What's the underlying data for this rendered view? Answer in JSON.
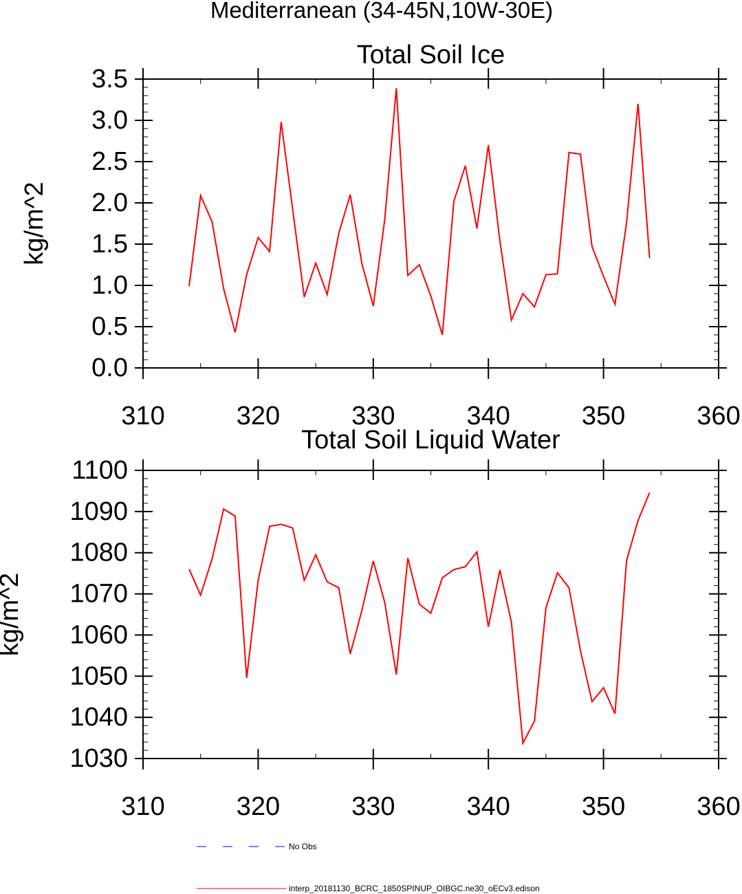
{
  "figure_title": "Mediterranean (34-45N,10W-30E)",
  "legend": [
    {
      "label": "No Obs",
      "color": "#0000ff",
      "style": "dashed"
    },
    {
      "label": "interp_20181130_BCRC_1850SPINUP_OIBGC.ne30_oECv3.edison",
      "color": "#ff0000",
      "style": "solid"
    }
  ],
  "chart_data": [
    {
      "type": "line",
      "title": "Total Soil Ice",
      "xlabel": "",
      "ylabel": "kg/m^2",
      "xlim": [
        310,
        360
      ],
      "ylim": [
        0.0,
        3.5
      ],
      "xticks": [
        310,
        320,
        330,
        340,
        350,
        360
      ],
      "xtick_labels": [
        "310",
        "320",
        "330",
        "340",
        "350",
        "360"
      ],
      "yticks": [
        0.0,
        0.5,
        1.0,
        1.5,
        2.0,
        2.5,
        3.0,
        3.5
      ],
      "ytick_labels": [
        "0.0",
        "0.5",
        "1.0",
        "1.5",
        "2.0",
        "2.5",
        "3.0",
        "3.5"
      ],
      "yminor_step": 0.1,
      "xminor_step": 5,
      "series": [
        {
          "name": "interp_20181130_BCRC_1850SPINUP_OIBGC.ne30_oECv3.edison",
          "color": "#ff0000",
          "x": [
            314,
            315,
            316,
            317,
            318,
            319,
            320,
            321,
            322,
            323,
            324,
            325,
            326,
            327,
            328,
            329,
            330,
            331,
            332,
            333,
            334,
            335,
            336,
            337,
            338,
            339,
            340,
            341,
            342,
            343,
            344,
            345,
            346,
            347,
            348,
            349,
            350,
            351,
            352,
            353,
            354
          ],
          "values": [
            0.99,
            2.09,
            1.77,
            0.96,
            0.43,
            1.13,
            1.58,
            1.41,
            2.98,
            1.92,
            0.86,
            1.27,
            0.89,
            1.63,
            2.1,
            1.27,
            0.75,
            1.8,
            3.39,
            1.12,
            1.25,
            0.87,
            0.4,
            2.02,
            2.45,
            1.69,
            2.7,
            1.54,
            0.58,
            0.9,
            0.74,
            1.13,
            1.14,
            2.61,
            2.59,
            1.47,
            1.11,
            0.77,
            1.76,
            3.2,
            1.33
          ]
        }
      ]
    },
    {
      "type": "line",
      "title": "Total Soil Liquid Water",
      "xlabel": "",
      "ylabel": "kg/m^2",
      "xlim": [
        310,
        360
      ],
      "ylim": [
        1030,
        1100
      ],
      "xticks": [
        310,
        320,
        330,
        340,
        350,
        360
      ],
      "xtick_labels": [
        "310",
        "320",
        "330",
        "340",
        "350",
        "360"
      ],
      "yticks": [
        1030,
        1040,
        1050,
        1060,
        1070,
        1080,
        1090,
        1100
      ],
      "ytick_labels": [
        "1030",
        "1040",
        "1050",
        "1060",
        "1070",
        "1080",
        "1090",
        "1100"
      ],
      "yminor_step": 2,
      "xminor_step": 5,
      "series": [
        {
          "name": "interp_20181130_BCRC_1850SPINUP_OIBGC.ne30_oECv3.edison",
          "color": "#ff0000",
          "x": [
            314,
            315,
            316,
            317,
            318,
            319,
            320,
            321,
            322,
            323,
            324,
            325,
            326,
            327,
            328,
            329,
            330,
            331,
            332,
            333,
            334,
            335,
            336,
            337,
            338,
            339,
            340,
            341,
            342,
            343,
            344,
            345,
            346,
            347,
            348,
            349,
            350,
            351,
            352,
            353,
            354
          ],
          "values": [
            1076.0,
            1069.7,
            1078.5,
            1090.6,
            1088.9,
            1049.6,
            1073.3,
            1086.4,
            1086.9,
            1086.0,
            1073.3,
            1079.5,
            1072.9,
            1071.5,
            1055.4,
            1065.9,
            1078.0,
            1067.9,
            1050.4,
            1078.7,
            1067.5,
            1065.3,
            1073.9,
            1075.9,
            1076.6,
            1080.2,
            1062.0,
            1075.8,
            1063.1,
            1033.7,
            1039.1,
            1066.6,
            1075.1,
            1071.5,
            1056.2,
            1043.8,
            1047.2,
            1040.9,
            1078.1,
            1087.8,
            1094.6
          ]
        }
      ]
    }
  ]
}
